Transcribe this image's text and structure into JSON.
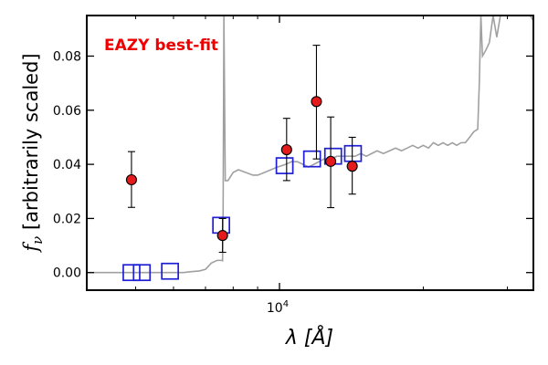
{
  "chart_data": {
    "type": "scatter",
    "annotation": "EAZY best-fit",
    "xlabel": "λ [Å]",
    "ylabel": "f_ν [arbitrarily scaled]",
    "xscale": "log",
    "xlim": [
      3950,
      34000
    ],
    "ylim": [
      -0.0065,
      0.095
    ],
    "x_ticks": [
      {
        "value": 10000,
        "label": "10^4"
      }
    ],
    "x_minor_ticks": [
      5000,
      6000,
      7000,
      8000,
      9000,
      20000,
      30000
    ],
    "y_ticks": [
      0.0,
      0.02,
      0.04,
      0.06,
      0.08
    ],
    "y_tick_labels": [
      "0.00",
      "0.02",
      "0.04",
      "0.06",
      "0.08"
    ],
    "grid": false,
    "colors": {
      "observed": "#e41a1c",
      "model_photometry": "#1f1fd6",
      "sed": "#a0a0a0",
      "annotation": "#ee0000",
      "axes": "#000000"
    },
    "sed_curve": {
      "x": [
        3950,
        4200,
        4500,
        4800,
        5200,
        5600,
        5900,
        6100,
        6300,
        6500,
        6800,
        7000,
        7200,
        7400,
        7550,
        7580,
        7600,
        7620,
        7650,
        7700,
        7800,
        8000,
        8200,
        8500,
        8800,
        9000,
        9300,
        9600,
        9900,
        10300,
        10600,
        10900,
        11200,
        11500,
        11800,
        12100,
        12400,
        12800,
        13200,
        13600,
        14000,
        14400,
        14800,
        15200,
        15600,
        16000,
        16500,
        17000,
        17500,
        18000,
        18500,
        19000,
        19500,
        20000,
        20500,
        21000,
        21500,
        22000,
        22500,
        23000,
        23500,
        24000,
        24500,
        25000,
        25500,
        26000,
        26200,
        26400,
        26600,
        27000,
        27500,
        28000,
        28500,
        29000,
        29500,
        30000,
        30500,
        31000,
        31500,
        32000,
        32500,
        33000,
        33500,
        34000
      ],
      "y": [
        0.0,
        0.0,
        0.0,
        0.0,
        0.0,
        0.0,
        0.0,
        0.0,
        0.0,
        0.0003,
        0.0006,
        0.0012,
        0.0035,
        0.0045,
        0.0045,
        0.0045,
        0.0044,
        0.02,
        0.095,
        0.034,
        0.034,
        0.037,
        0.038,
        0.037,
        0.036,
        0.036,
        0.037,
        0.038,
        0.039,
        0.04,
        0.041,
        0.041,
        0.04,
        0.039,
        0.04,
        0.041,
        0.042,
        0.042,
        0.043,
        0.043,
        0.043,
        0.043,
        0.044,
        0.043,
        0.044,
        0.045,
        0.044,
        0.045,
        0.046,
        0.045,
        0.046,
        0.047,
        0.046,
        0.047,
        0.046,
        0.048,
        0.047,
        0.048,
        0.047,
        0.048,
        0.047,
        0.048,
        0.048,
        0.05,
        0.052,
        0.053,
        0.07,
        0.095,
        0.08,
        0.082,
        0.085,
        0.095,
        0.087,
        0.095,
        0.095,
        0.095,
        0.095,
        0.095,
        0.095,
        0.095,
        0.095,
        0.095,
        0.095,
        0.093
      ]
    },
    "model_photometry": {
      "x": [
        4900,
        5150,
        5900,
        7550,
        10250,
        11700,
        12950,
        14250
      ],
      "y": [
        0.0,
        0.0,
        0.0005,
        0.0175,
        0.0395,
        0.042,
        0.043,
        0.044
      ]
    },
    "observed": {
      "x": [
        4900,
        7600,
        10350,
        11950,
        12800,
        14200
      ],
      "y": [
        0.0343,
        0.0137,
        0.0454,
        0.0632,
        0.0411,
        0.0393
      ],
      "err_low": [
        0.0102,
        0.0062,
        0.0114,
        0.0212,
        0.0171,
        0.0103
      ],
      "err_high": [
        0.0104,
        0.0063,
        0.0116,
        0.0208,
        0.0164,
        0.0107
      ]
    }
  }
}
